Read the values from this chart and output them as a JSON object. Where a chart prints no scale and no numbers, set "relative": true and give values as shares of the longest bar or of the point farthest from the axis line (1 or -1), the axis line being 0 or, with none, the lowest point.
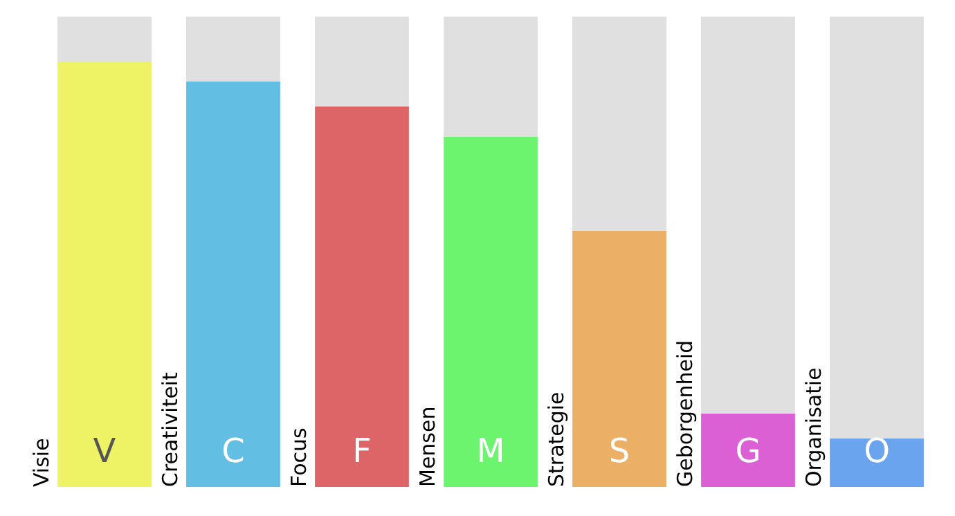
{
  "chart_data": {
    "type": "bar",
    "relative": true,
    "stacked": true,
    "legend": false,
    "categories": [
      "Visie",
      "Creativiteit",
      "Focus",
      "Mensen",
      "Strategie",
      "Geborgenheid",
      "Organisatie"
    ],
    "series": [
      {
        "colors": [
          "#eef265",
          "#62bee3",
          "#dd6567",
          "#6cf46e",
          "#ebaf65",
          "#da60d4",
          "#6aa4ef"
        ],
        "values": [
          0.903,
          0.862,
          0.809,
          0.744,
          0.544,
          0.156,
          0.103
        ]
      },
      {
        "color": "#e0e0e0",
        "values": [
          0.097,
          0.138,
          0.191,
          0.256,
          0.456,
          0.844,
          0.897
        ]
      }
    ],
    "annotations": [
      "V",
      "C",
      "F",
      "M",
      "S",
      "G",
      "O"
    ]
  }
}
